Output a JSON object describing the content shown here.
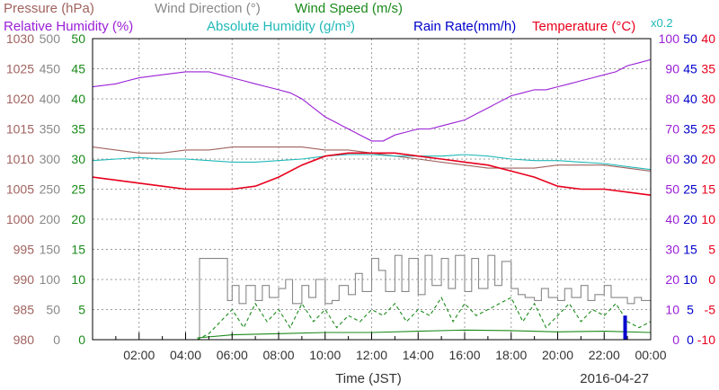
{
  "chart_data": {
    "type": "line",
    "date_label": "2016-04-27",
    "xlabel": "Time (JST)",
    "x_ticks": [
      "02:00",
      "04:00",
      "06:00",
      "08:00",
      "10:00",
      "12:00",
      "14:00",
      "16:00",
      "18:00",
      "20:00",
      "22:00",
      "00:00"
    ],
    "x_range_hours": [
      0,
      24
    ],
    "grid": true,
    "legend": [
      {
        "key": "pressure",
        "label": "Pressure (hPa)",
        "color": "#a0625e"
      },
      {
        "key": "wind_direction",
        "label": "Wind Direction (°)",
        "color": "#888888"
      },
      {
        "key": "wind_speed",
        "label": "Wind Speed (m/s)",
        "color": "#1a8a1a"
      },
      {
        "key": "relative_humidity",
        "label": "Relative Humidity (%)",
        "color": "#9a1fd6"
      },
      {
        "key": "absolute_humidity",
        "label": "Absolute Humidity (g/m³)",
        "color": "#20b8b8"
      },
      {
        "key": "rain_rate",
        "label": "Rain Rate(mm/h)",
        "color": "#0000cc"
      },
      {
        "key": "temperature",
        "label": "Temperature (°C)",
        "color": "#e8001c"
      },
      {
        "key": "abs_hum_scale",
        "label": "x0.2",
        "color": "#20b8b8"
      }
    ],
    "axes": {
      "pressure": {
        "ticks": [
          "1030",
          "1025",
          "1020",
          "1015",
          "1010",
          "1005",
          "1000",
          "995",
          "990",
          "985",
          "980"
        ],
        "range": [
          980,
          1030
        ]
      },
      "wind_direction": {
        "ticks": [
          "500",
          "450",
          "400",
          "350",
          "300",
          "250",
          "200",
          "150",
          "100",
          "50",
          "0"
        ],
        "range": [
          0,
          500
        ]
      },
      "wind_speed": {
        "ticks": [
          "50",
          "45",
          "40",
          "35",
          "30",
          "25",
          "20",
          "15",
          "10",
          "5",
          "0"
        ],
        "range": [
          0,
          50
        ]
      },
      "relative_humidity": {
        "ticks": [
          "100",
          "90",
          "80",
          "70",
          "60",
          "50",
          "40",
          "30",
          "20",
          "10",
          "0"
        ],
        "range": [
          0,
          100
        ]
      },
      "rain_rate": {
        "ticks": [
          "50",
          "45",
          "40",
          "35",
          "30",
          "25",
          "20",
          "15",
          "10",
          "5",
          "0"
        ],
        "range": [
          0,
          50
        ]
      },
      "temperature": {
        "ticks": [
          "40",
          "35",
          "30",
          "25",
          "20",
          "15",
          "10",
          "5",
          "0",
          "-5",
          "-10"
        ],
        "range": [
          -10,
          40
        ]
      }
    },
    "series": [
      {
        "key": "relative_humidity",
        "unit_axis": "relative_humidity",
        "x": [
          0,
          1,
          1.5,
          2,
          3,
          4,
          5,
          5.5,
          6,
          6.5,
          7,
          7.5,
          8,
          8.5,
          9,
          9.5,
          10,
          10.5,
          11,
          11.5,
          12,
          12.5,
          13,
          13.5,
          14,
          14.5,
          15,
          15.5,
          16,
          16.5,
          17,
          17.5,
          18,
          18.5,
          19,
          19.5,
          20,
          20.5,
          21,
          21.5,
          22,
          22.5,
          23,
          23.5,
          24
        ],
        "y": [
          84,
          85,
          86,
          87,
          88,
          89,
          89,
          88,
          87,
          86,
          85,
          84,
          83,
          82,
          80,
          77,
          74,
          72,
          70,
          68,
          66,
          66,
          68,
          69,
          70,
          70,
          71,
          72,
          73,
          75,
          77,
          79,
          81,
          82,
          83,
          83,
          84,
          85,
          86,
          87,
          88,
          89,
          91,
          92,
          93
        ]
      },
      {
        "key": "pressure",
        "unit_axis": "pressure",
        "x": [
          0,
          1,
          2,
          3,
          4,
          5,
          6,
          7,
          8,
          9,
          10,
          11,
          12,
          13,
          14,
          15,
          16,
          17,
          18,
          19,
          20,
          21,
          22,
          23,
          24
        ],
        "y": [
          1012,
          1011.5,
          1011,
          1011,
          1011.5,
          1011.5,
          1012,
          1012,
          1012,
          1012,
          1011.5,
          1011.5,
          1011,
          1010.5,
          1010,
          1009.5,
          1009,
          1008.5,
          1008.5,
          1008.5,
          1009,
          1009,
          1009,
          1008.5,
          1008
        ]
      },
      {
        "key": "absolute_humidity",
        "unit_axis": "relative_humidity",
        "x": [
          0,
          1,
          2,
          3,
          4,
          5,
          6,
          7,
          8,
          9,
          10,
          11,
          12,
          13,
          14,
          15,
          16,
          17,
          18,
          19,
          20,
          21,
          22,
          23,
          24
        ],
        "y": [
          59.5,
          60,
          60.5,
          60,
          60,
          59.5,
          59,
          59,
          59.5,
          60,
          61,
          61.5,
          61.5,
          61,
          61,
          61,
          61.5,
          61,
          60,
          59.5,
          59.5,
          59,
          58.5,
          57.5,
          56.5
        ]
      },
      {
        "key": "temperature",
        "unit_axis": "temperature",
        "x": [
          0,
          1,
          2,
          3,
          4,
          5,
          6,
          7,
          8,
          9,
          10,
          11,
          12,
          13,
          14,
          15,
          16,
          17,
          18,
          19,
          20,
          21,
          22,
          23,
          24
        ],
        "y": [
          17,
          16.5,
          16,
          15.5,
          15,
          15,
          15,
          15.5,
          17,
          19,
          20.5,
          21,
          21,
          21,
          20.5,
          20,
          19.5,
          19,
          18,
          17,
          15.5,
          15,
          15,
          14.5,
          14
        ]
      },
      {
        "key": "wind_direction",
        "unit_axis": "wind_direction",
        "style": "step",
        "x": [
          4.5,
          4.6,
          5,
          5.2,
          5.4,
          5.6,
          5.8,
          6,
          6.3,
          6.6,
          7,
          7.3,
          7.6,
          8,
          8.3,
          8.6,
          9,
          9.3,
          9.6,
          10,
          10.3,
          10.6,
          11,
          11.3,
          11.6,
          12,
          12.3,
          12.6,
          13,
          13.3,
          13.6,
          14,
          14.3,
          14.6,
          15,
          15.3,
          15.6,
          16,
          16.3,
          16.6,
          17,
          17.3,
          17.6,
          18,
          18.3,
          18.6,
          19,
          19.3,
          19.6,
          20,
          20.3,
          20.6,
          21,
          21.3,
          21.6,
          22,
          22.3,
          22.6,
          23,
          23.3,
          23.6,
          24
        ],
        "y": [
          0,
          135,
          135,
          135,
          135,
          135,
          65,
          90,
          60,
          90,
          65,
          90,
          70,
          85,
          100,
          60,
          90,
          70,
          100,
          60,
          65,
          90,
          75,
          110,
          80,
          135,
          115,
          80,
          140,
          80,
          135,
          75,
          140,
          90,
          135,
          85,
          140,
          80,
          135,
          85,
          140,
          90,
          130,
          85,
          75,
          70,
          65,
          85,
          70,
          65,
          85,
          70,
          90,
          65,
          75,
          90,
          70,
          70,
          60,
          70,
          65,
          65
        ]
      },
      {
        "key": "wind_speed",
        "unit_axis": "wind_speed",
        "style": "dashed",
        "x": [
          4.5,
          5,
          5.5,
          6,
          6.5,
          7,
          7.5,
          8,
          8.5,
          9,
          9.5,
          10,
          10.5,
          11,
          11.5,
          12,
          12.5,
          13,
          13.5,
          14,
          14.5,
          15,
          15.5,
          16,
          16.5,
          17,
          17.5,
          18,
          18.5,
          19,
          19.5,
          20,
          20.5,
          21,
          21.5,
          22,
          22.5,
          23,
          23.5,
          24
        ],
        "y": [
          0,
          1,
          3,
          5,
          2,
          6,
          3,
          5,
          2,
          6,
          3,
          5,
          2,
          4,
          3,
          5,
          4,
          6,
          3,
          5,
          4,
          7,
          3,
          6,
          4,
          5,
          6,
          7,
          3,
          6,
          2,
          4,
          6,
          3,
          5,
          4,
          6,
          3,
          2,
          3
        ]
      },
      {
        "key": "wind_speed_avg",
        "unit_axis": "wind_speed",
        "x": [
          4.5,
          6,
          8,
          10,
          12,
          14,
          16,
          18,
          20,
          22,
          24
        ],
        "y": [
          0.3,
          0.8,
          1,
          1.2,
          1.2,
          1.4,
          1.6,
          1.5,
          1.3,
          1.4,
          1.2
        ]
      },
      {
        "key": "rain_rate",
        "unit_axis": "rain_rate",
        "style": "bar",
        "x": [
          22.8,
          22.9,
          23.0
        ],
        "y": [
          0,
          4,
          0
        ]
      }
    ]
  }
}
